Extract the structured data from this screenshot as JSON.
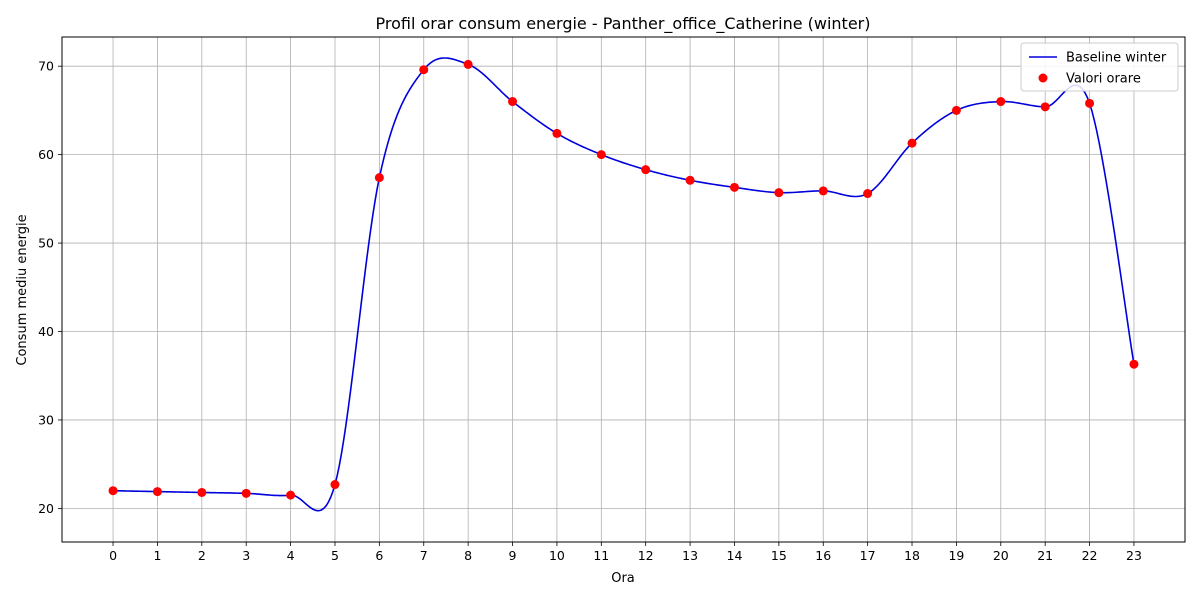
{
  "chart_data": {
    "type": "line",
    "title": "Profil orar consum energie - Panther_office_Catherine (winter)",
    "xlabel": "Ora",
    "ylabel": "Consum mediu energie",
    "xlim": [
      -1.15,
      24.15
    ],
    "ylim": [
      16.2,
      73.3
    ],
    "x_ticks": [
      0,
      1,
      2,
      3,
      4,
      5,
      6,
      7,
      8,
      9,
      10,
      11,
      12,
      13,
      14,
      15,
      16,
      17,
      18,
      19,
      20,
      21,
      22,
      23
    ],
    "y_ticks": [
      20,
      30,
      40,
      50,
      60,
      70
    ],
    "grid": true,
    "legend_position": "top-right",
    "x": [
      0,
      1,
      2,
      3,
      4,
      5,
      6,
      7,
      8,
      9,
      10,
      11,
      12,
      13,
      14,
      15,
      16,
      17,
      18,
      19,
      20,
      21,
      22,
      23
    ],
    "series": [
      {
        "name": "Baseline winter",
        "kind": "smooth-line",
        "color": "#0000dd",
        "values": [
          22.0,
          21.9,
          21.8,
          21.7,
          21.5,
          22.7,
          57.4,
          69.6,
          70.2,
          66.0,
          62.4,
          60.0,
          58.3,
          57.1,
          56.3,
          55.7,
          55.9,
          55.6,
          61.3,
          65.0,
          66.0,
          65.4,
          65.8,
          36.3
        ]
      },
      {
        "name": "Valori orare",
        "kind": "scatter",
        "color": "#ff0000",
        "values": [
          22.0,
          21.9,
          21.8,
          21.7,
          21.5,
          22.7,
          57.4,
          69.6,
          70.2,
          66.0,
          62.4,
          60.0,
          58.3,
          57.1,
          56.3,
          55.7,
          55.9,
          55.6,
          61.3,
          65.0,
          66.0,
          65.4,
          65.8,
          36.3
        ]
      }
    ]
  }
}
